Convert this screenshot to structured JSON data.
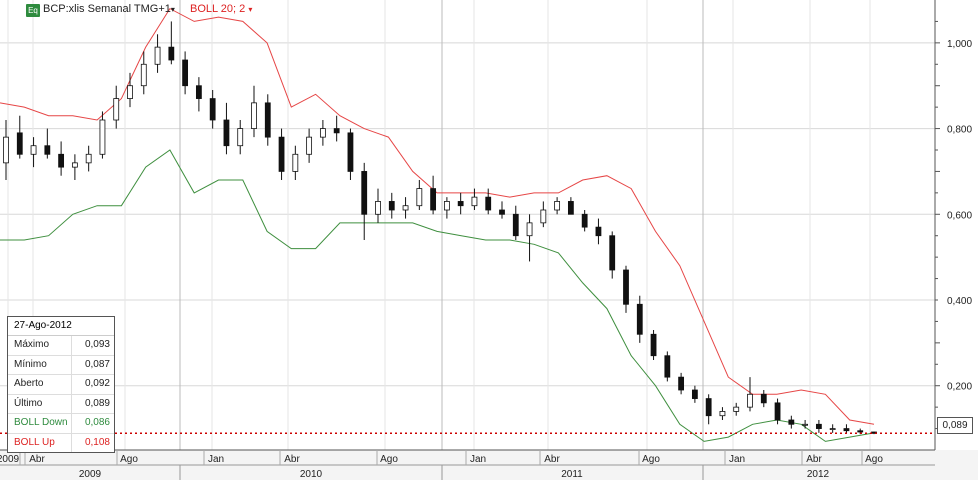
{
  "header": {
    "badge": "Eq",
    "symbol": "BCP:xlis Semanal TMG+1",
    "indicator": "BOLL 20; 2"
  },
  "info_box": {
    "date": "27-Ago-2012",
    "rows": [
      {
        "label": "Máximo",
        "value": "0,093",
        "color": "#222222"
      },
      {
        "label": "Mínimo",
        "value": "0,087",
        "color": "#222222"
      },
      {
        "label": "Aberto",
        "value": "0,092",
        "color": "#222222"
      },
      {
        "label": "Último",
        "value": "0,089",
        "color": "#222222"
      },
      {
        "label": "BOLL Down",
        "value": "0,086",
        "color": "#2e8b3e"
      },
      {
        "label": "BOLL Up",
        "value": "0,108",
        "color": "#dd2222"
      }
    ]
  },
  "last_value_label": "0,089",
  "chart_data": {
    "type": "candlestick",
    "y_ticks": [
      {
        "value": 1.0,
        "label": "1,000"
      },
      {
        "value": 0.8,
        "label": "0,800"
      },
      {
        "value": 0.6,
        "label": "0,600"
      },
      {
        "value": 0.4,
        "label": "0,400"
      },
      {
        "value": 0.2,
        "label": "0,200"
      }
    ],
    "ylim": [
      0.05,
      1.1
    ],
    "last_value": 0.089,
    "x_month_labels": [
      "2009",
      "Abr",
      "Ago",
      "Jan",
      "Abr",
      "Ago",
      "Jan",
      "Abr",
      "Ago",
      "Jan",
      "Abr",
      "Ago"
    ],
    "x_year_labels": [
      "2009",
      "2010",
      "2011",
      "2012"
    ],
    "colors": {
      "up_band": "#e64646",
      "down_band": "#3f8f3f",
      "candle": "#111111",
      "last_line": "#cc0000"
    },
    "boll_up": [
      0.86,
      0.85,
      0.83,
      0.83,
      0.82,
      0.87,
      0.99,
      1.08,
      1.05,
      1.06,
      1.05,
      1.0,
      0.85,
      0.88,
      0.83,
      0.8,
      0.78,
      0.7,
      0.65,
      0.65,
      0.65,
      0.64,
      0.65,
      0.65,
      0.68,
      0.69,
      0.66,
      0.56,
      0.48,
      0.35,
      0.22,
      0.18,
      0.18,
      0.19,
      0.18,
      0.12,
      0.11
    ],
    "boll_down": [
      0.54,
      0.54,
      0.55,
      0.6,
      0.62,
      0.62,
      0.71,
      0.75,
      0.65,
      0.68,
      0.68,
      0.56,
      0.52,
      0.52,
      0.58,
      0.58,
      0.58,
      0.58,
      0.56,
      0.55,
      0.54,
      0.54,
      0.53,
      0.51,
      0.44,
      0.38,
      0.27,
      0.2,
      0.11,
      0.07,
      0.08,
      0.11,
      0.12,
      0.11,
      0.07,
      0.08,
      0.09
    ],
    "candles": [
      {
        "o": 0.72,
        "h": 0.82,
        "l": 0.68,
        "c": 0.78
      },
      {
        "o": 0.79,
        "h": 0.83,
        "l": 0.73,
        "c": 0.74
      },
      {
        "o": 0.74,
        "h": 0.78,
        "l": 0.71,
        "c": 0.76
      },
      {
        "o": 0.76,
        "h": 0.8,
        "l": 0.73,
        "c": 0.74
      },
      {
        "o": 0.74,
        "h": 0.77,
        "l": 0.69,
        "c": 0.71
      },
      {
        "o": 0.71,
        "h": 0.74,
        "l": 0.68,
        "c": 0.72
      },
      {
        "o": 0.72,
        "h": 0.76,
        "l": 0.7,
        "c": 0.74
      },
      {
        "o": 0.74,
        "h": 0.84,
        "l": 0.73,
        "c": 0.82
      },
      {
        "o": 0.82,
        "h": 0.9,
        "l": 0.8,
        "c": 0.87
      },
      {
        "o": 0.87,
        "h": 0.93,
        "l": 0.85,
        "c": 0.9
      },
      {
        "o": 0.9,
        "h": 0.98,
        "l": 0.88,
        "c": 0.95
      },
      {
        "o": 0.95,
        "h": 1.02,
        "l": 0.93,
        "c": 0.99
      },
      {
        "o": 0.99,
        "h": 1.05,
        "l": 0.95,
        "c": 0.96
      },
      {
        "o": 0.96,
        "h": 0.98,
        "l": 0.88,
        "c": 0.9
      },
      {
        "o": 0.9,
        "h": 0.92,
        "l": 0.84,
        "c": 0.87
      },
      {
        "o": 0.87,
        "h": 0.89,
        "l": 0.8,
        "c": 0.82
      },
      {
        "o": 0.82,
        "h": 0.86,
        "l": 0.74,
        "c": 0.76
      },
      {
        "o": 0.76,
        "h": 0.82,
        "l": 0.74,
        "c": 0.8
      },
      {
        "o": 0.8,
        "h": 0.9,
        "l": 0.78,
        "c": 0.86
      },
      {
        "o": 0.86,
        "h": 0.88,
        "l": 0.76,
        "c": 0.78
      },
      {
        "o": 0.78,
        "h": 0.8,
        "l": 0.68,
        "c": 0.7
      },
      {
        "o": 0.7,
        "h": 0.76,
        "l": 0.68,
        "c": 0.74
      },
      {
        "o": 0.74,
        "h": 0.8,
        "l": 0.72,
        "c": 0.78
      },
      {
        "o": 0.78,
        "h": 0.82,
        "l": 0.76,
        "c": 0.8
      },
      {
        "o": 0.8,
        "h": 0.83,
        "l": 0.77,
        "c": 0.79
      },
      {
        "o": 0.79,
        "h": 0.8,
        "l": 0.68,
        "c": 0.7
      },
      {
        "o": 0.7,
        "h": 0.72,
        "l": 0.54,
        "c": 0.6
      },
      {
        "o": 0.6,
        "h": 0.66,
        "l": 0.58,
        "c": 0.63
      },
      {
        "o": 0.63,
        "h": 0.65,
        "l": 0.59,
        "c": 0.61
      },
      {
        "o": 0.61,
        "h": 0.64,
        "l": 0.59,
        "c": 0.62
      },
      {
        "o": 0.62,
        "h": 0.68,
        "l": 0.61,
        "c": 0.66
      },
      {
        "o": 0.66,
        "h": 0.69,
        "l": 0.6,
        "c": 0.61
      },
      {
        "o": 0.61,
        "h": 0.64,
        "l": 0.59,
        "c": 0.63
      },
      {
        "o": 0.63,
        "h": 0.65,
        "l": 0.6,
        "c": 0.62
      },
      {
        "o": 0.62,
        "h": 0.66,
        "l": 0.61,
        "c": 0.64
      },
      {
        "o": 0.64,
        "h": 0.66,
        "l": 0.6,
        "c": 0.61
      },
      {
        "o": 0.61,
        "h": 0.63,
        "l": 0.59,
        "c": 0.6
      },
      {
        "o": 0.6,
        "h": 0.62,
        "l": 0.54,
        "c": 0.55
      },
      {
        "o": 0.55,
        "h": 0.6,
        "l": 0.49,
        "c": 0.58
      },
      {
        "o": 0.58,
        "h": 0.63,
        "l": 0.57,
        "c": 0.61
      },
      {
        "o": 0.61,
        "h": 0.64,
        "l": 0.6,
        "c": 0.63
      },
      {
        "o": 0.63,
        "h": 0.64,
        "l": 0.6,
        "c": 0.6
      },
      {
        "o": 0.6,
        "h": 0.61,
        "l": 0.56,
        "c": 0.57
      },
      {
        "o": 0.57,
        "h": 0.59,
        "l": 0.53,
        "c": 0.55
      },
      {
        "o": 0.55,
        "h": 0.56,
        "l": 0.45,
        "c": 0.47
      },
      {
        "o": 0.47,
        "h": 0.48,
        "l": 0.37,
        "c": 0.39
      },
      {
        "o": 0.39,
        "h": 0.41,
        "l": 0.3,
        "c": 0.32
      },
      {
        "o": 0.32,
        "h": 0.33,
        "l": 0.26,
        "c": 0.27
      },
      {
        "o": 0.27,
        "h": 0.28,
        "l": 0.21,
        "c": 0.22
      },
      {
        "o": 0.22,
        "h": 0.23,
        "l": 0.18,
        "c": 0.19
      },
      {
        "o": 0.19,
        "h": 0.2,
        "l": 0.16,
        "c": 0.17
      },
      {
        "o": 0.17,
        "h": 0.18,
        "l": 0.11,
        "c": 0.13
      },
      {
        "o": 0.13,
        "h": 0.15,
        "l": 0.12,
        "c": 0.14
      },
      {
        "o": 0.14,
        "h": 0.16,
        "l": 0.13,
        "c": 0.15
      },
      {
        "o": 0.15,
        "h": 0.22,
        "l": 0.14,
        "c": 0.18
      },
      {
        "o": 0.18,
        "h": 0.19,
        "l": 0.15,
        "c": 0.16
      },
      {
        "o": 0.16,
        "h": 0.17,
        "l": 0.11,
        "c": 0.12
      },
      {
        "o": 0.12,
        "h": 0.13,
        "l": 0.1,
        "c": 0.11
      },
      {
        "o": 0.11,
        "h": 0.12,
        "l": 0.1,
        "c": 0.11
      },
      {
        "o": 0.11,
        "h": 0.12,
        "l": 0.09,
        "c": 0.1
      },
      {
        "o": 0.1,
        "h": 0.11,
        "l": 0.09,
        "c": 0.1
      },
      {
        "o": 0.1,
        "h": 0.11,
        "l": 0.09,
        "c": 0.095
      },
      {
        "o": 0.095,
        "h": 0.1,
        "l": 0.087,
        "c": 0.092
      },
      {
        "o": 0.092,
        "h": 0.093,
        "l": 0.087,
        "c": 0.089
      }
    ]
  }
}
